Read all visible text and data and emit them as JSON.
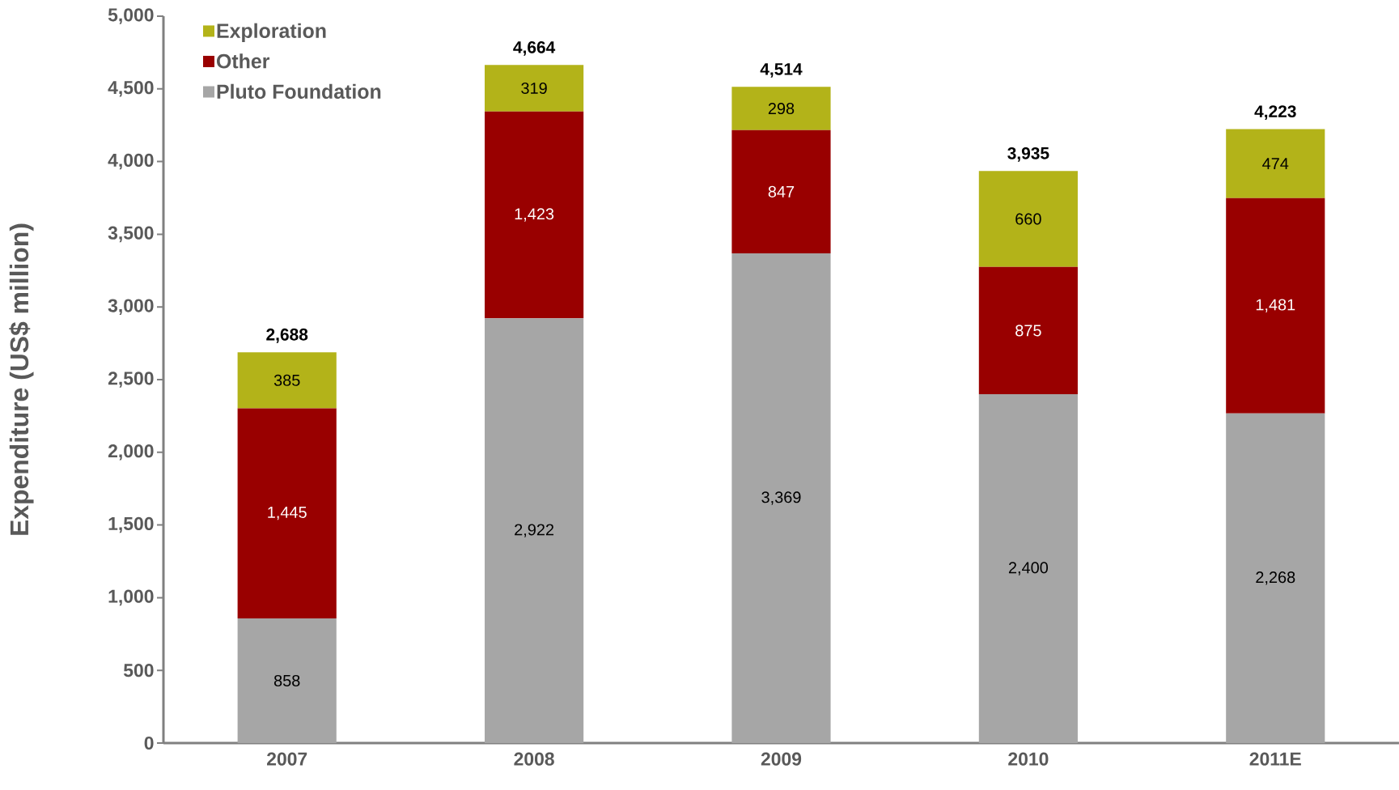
{
  "chart_data": {
    "type": "bar",
    "stacked": true,
    "ylabel": "Expenditure (US$ million)",
    "categories": [
      "2007",
      "2008",
      "2009",
      "2010",
      "2011E"
    ],
    "series": [
      {
        "name": "Pluto Foundation",
        "color": "#a6a6a6",
        "values": [
          858,
          2922,
          3369,
          2400,
          2268
        ],
        "value_labels": [
          "858",
          "2,922",
          "3,369",
          "2,400",
          "2,268"
        ]
      },
      {
        "name": "Other",
        "color": "#990000",
        "values": [
          1445,
          1423,
          847,
          875,
          1481
        ],
        "value_labels": [
          "1,445",
          "1,423",
          "847",
          "875",
          "1,481"
        ]
      },
      {
        "name": "Exploration",
        "color": "#b3b319",
        "values": [
          385,
          319,
          298,
          660,
          474
        ],
        "value_labels": [
          "385",
          "319",
          "298",
          "660",
          "474"
        ]
      }
    ],
    "totals": [
      "2,688",
      "4,664",
      "4,514",
      "3,935",
      "4,223"
    ],
    "ylim": [
      0,
      5000
    ],
    "yticks": [
      {
        "value": 0,
        "label": "0"
      },
      {
        "value": 500,
        "label": "500"
      },
      {
        "value": 1000,
        "label": "1,000"
      },
      {
        "value": 1500,
        "label": "1,500"
      },
      {
        "value": 2000,
        "label": "2,000"
      },
      {
        "value": 2500,
        "label": "2,500"
      },
      {
        "value": 3000,
        "label": "3,000"
      },
      {
        "value": 3500,
        "label": "3,500"
      },
      {
        "value": 4000,
        "label": "4,000"
      },
      {
        "value": 4500,
        "label": "4,500"
      },
      {
        "value": 5000,
        "label": "5,000"
      }
    ],
    "grid": false,
    "legend": "top left"
  }
}
